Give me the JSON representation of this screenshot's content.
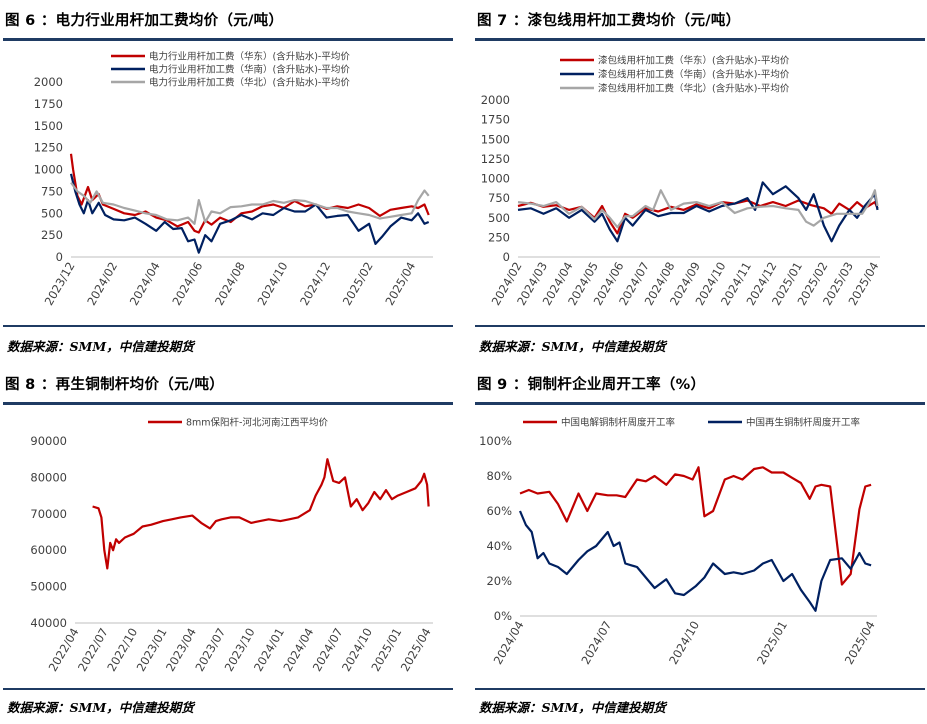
{
  "colors": {
    "red": "#c00000",
    "navy": "#002060",
    "grey": "#a6a6a6",
    "rule": "#1f3b63",
    "axis": "#404040"
  },
  "source_text": "数据来源：SMM，中信建投期货",
  "charts": [
    {
      "title": "图 6 ：电力行业用杆加工费均价（元/吨）",
      "chart_data": {
        "type": "line",
        "ylim": [
          0,
          2000
        ],
        "yticks": [
          "2000",
          "1750",
          "1500",
          "1250",
          "1000",
          "750",
          "500",
          "250",
          "0"
        ],
        "xlim": [
          0,
          17
        ],
        "xticks": [
          "2023/12",
          "2024/02",
          "2024/04",
          "2024/06",
          "2024/08",
          "2024/10",
          "2024/12",
          "2025/02",
          "2025/04"
        ],
        "xtick_pos": [
          0,
          2,
          4,
          6,
          8,
          10,
          12,
          14,
          16
        ],
        "legend": [
          "电力行业用杆加工费（华东）(含升贴水)-平均价",
          "电力行业用杆加工费（华南）(含升贴水)-平均价",
          "电力行业用杆加工费（华北）(含升贴水)-平均价"
        ],
        "series": [
          {
            "name": "电力行业用杆加工费（华东）(含升贴水)-平均价",
            "color": "#c00000",
            "x": [
              0,
              0.1,
              0.3,
              0.5,
              0.8,
              1.0,
              1.3,
              1.5,
              2.0,
              2.5,
              3.0,
              3.5,
              4.0,
              4.5,
              5.0,
              5.5,
              5.8,
              6.0,
              6.3,
              6.6,
              7.0,
              7.5,
              8.0,
              8.5,
              9.0,
              9.5,
              10.0,
              10.5,
              11.0,
              11.5,
              12.0,
              12.5,
              13.0,
              13.5,
              14.0,
              14.5,
              15.0,
              15.5,
              16.0,
              16.3,
              16.6,
              16.8
            ],
            "y": [
              1180,
              1000,
              700,
              600,
              800,
              650,
              720,
              600,
              550,
              500,
              480,
              520,
              450,
              420,
              350,
              400,
              300,
              280,
              420,
              370,
              450,
              400,
              500,
              520,
              580,
              600,
              560,
              640,
              580,
              600,
              550,
              580,
              560,
              600,
              560,
              470,
              540,
              560,
              580,
              560,
              600,
              480
            ]
          },
          {
            "name": "电力行业用杆加工费（华南）(含升贴水)-平均价",
            "color": "#002060",
            "x": [
              0,
              0.2,
              0.4,
              0.6,
              0.8,
              1.0,
              1.3,
              1.6,
              2.0,
              2.5,
              3.0,
              3.5,
              4.0,
              4.4,
              4.8,
              5.2,
              5.5,
              5.8,
              6.0,
              6.3,
              6.6,
              7.0,
              7.5,
              8.0,
              8.5,
              9.0,
              9.5,
              10.0,
              10.5,
              11.0,
              11.5,
              12.0,
              12.5,
              13.0,
              13.5,
              14.0,
              14.3,
              14.6,
              15.0,
              15.5,
              16.0,
              16.3,
              16.6,
              16.8
            ],
            "y": [
              950,
              750,
              600,
              500,
              650,
              500,
              620,
              480,
              430,
              420,
              450,
              380,
              300,
              400,
              320,
              330,
              180,
              200,
              50,
              250,
              180,
              380,
              420,
              480,
              430,
              500,
              480,
              560,
              520,
              520,
              600,
              450,
              470,
              480,
              300,
              380,
              150,
              230,
              350,
              450,
              420,
              500,
              380,
              400
            ]
          },
          {
            "name": "电力行业用杆加工费（华北）(含升贴水)-平均价",
            "color": "#a6a6a6",
            "x": [
              0,
              0.3,
              0.6,
              0.9,
              1.2,
              1.5,
              2.0,
              2.5,
              3.0,
              3.5,
              4.0,
              4.5,
              5.0,
              5.5,
              5.8,
              6.0,
              6.3,
              6.6,
              7.0,
              7.5,
              8.0,
              8.5,
              9.0,
              9.5,
              10.0,
              10.5,
              11.0,
              11.5,
              12.0,
              12.5,
              13.0,
              13.5,
              14.0,
              14.5,
              15.0,
              15.5,
              16.0,
              16.3,
              16.6,
              16.8
            ],
            "y": [
              850,
              750,
              700,
              620,
              750,
              620,
              600,
              560,
              530,
              500,
              480,
              430,
              420,
              450,
              380,
              650,
              400,
              520,
              500,
              570,
              580,
              600,
              600,
              640,
              620,
              650,
              640,
              600,
              560,
              560,
              520,
              500,
              480,
              440,
              460,
              480,
              500,
              650,
              760,
              700
            ]
          }
        ]
      }
    },
    {
      "title": "图 7 ：漆包线用杆加工费均价（元/吨）",
      "chart_data": {
        "type": "line",
        "ylim": [
          0,
          2000
        ],
        "yticks": [
          "2000",
          "1750",
          "1500",
          "1250",
          "1000",
          "750",
          "500",
          "250",
          "0"
        ],
        "xlim": [
          0,
          14.2
        ],
        "xticks": [
          "2024/02",
          "2024/03",
          "2024/04",
          "2024/05",
          "2024/06",
          "2024/07",
          "2024/08",
          "2024/09",
          "2024/10",
          "2024/11",
          "2024/12",
          "2025/01",
          "2025/02",
          "2025/03",
          "2025/04"
        ],
        "xtick_pos": [
          0,
          1,
          2,
          3,
          4,
          5,
          6,
          7,
          8,
          9,
          10,
          11,
          12,
          13,
          14
        ],
        "legend": [
          "漆包线用杆加工费（华东）(含升贴水)-平均价",
          "漆包线用杆加工费（华南）(含升贴水)-平均价",
          "漆包线用杆加工费（华北）(含升贴水)-平均价"
        ],
        "series": [
          {
            "name": "漆包线用杆加工费（华东）(含升贴水)-平均价",
            "color": "#c00000",
            "x": [
              0,
              0.5,
              1.0,
              1.5,
              2.0,
              2.5,
              3.0,
              3.3,
              3.6,
              3.9,
              4.2,
              4.5,
              5.0,
              5.5,
              6.0,
              6.5,
              7.0,
              7.5,
              8.0,
              8.5,
              9.0,
              9.5,
              10.0,
              10.5,
              11.0,
              11.5,
              12.0,
              12.3,
              12.6,
              13.0,
              13.3,
              13.6,
              14.0,
              14.1
            ],
            "y": [
              650,
              690,
              640,
              660,
              600,
              640,
              500,
              650,
              450,
              300,
              550,
              500,
              620,
              580,
              640,
              600,
              670,
              620,
              700,
              680,
              720,
              650,
              700,
              650,
              720,
              660,
              620,
              550,
              680,
              600,
              700,
              620,
              700,
              620
            ]
          },
          {
            "name": "漆包线用杆加工费（华南）(含升贴水)-平均价",
            "color": "#002060",
            "x": [
              0,
              0.5,
              1.0,
              1.5,
              2.0,
              2.5,
              3.0,
              3.3,
              3.6,
              3.9,
              4.2,
              4.5,
              5.0,
              5.5,
              6.0,
              6.5,
              7.0,
              7.5,
              8.0,
              8.5,
              9.0,
              9.3,
              9.6,
              10.0,
              10.5,
              11.0,
              11.3,
              11.6,
              12.0,
              12.3,
              12.6,
              13.0,
              13.3,
              13.6,
              14.0,
              14.1
            ],
            "y": [
              600,
              620,
              550,
              620,
              500,
              600,
              450,
              550,
              350,
              200,
              500,
              400,
              600,
              520,
              560,
              560,
              650,
              580,
              650,
              680,
              750,
              600,
              950,
              800,
              900,
              750,
              600,
              800,
              400,
              200,
              400,
              600,
              500,
              650,
              800,
              600
            ]
          },
          {
            "name": "漆包线用杆加工费（华北）(含升贴水)-平均价",
            "color": "#a6a6a6",
            "x": [
              0,
              0.5,
              1.0,
              1.5,
              2.0,
              2.5,
              3.0,
              3.3,
              3.6,
              3.9,
              4.2,
              4.5,
              5.0,
              5.3,
              5.6,
              6.0,
              6.5,
              7.0,
              7.5,
              8.0,
              8.5,
              9.0,
              9.5,
              10.0,
              10.5,
              11.0,
              11.3,
              11.6,
              12.0,
              12.5,
              13.0,
              13.5,
              13.8,
              14.0,
              14.1
            ],
            "y": [
              700,
              680,
              650,
              700,
              550,
              640,
              480,
              600,
              500,
              380,
              520,
              520,
              650,
              600,
              850,
              600,
              680,
              700,
              650,
              700,
              560,
              620,
              640,
              650,
              620,
              600,
              450,
              400,
              500,
              550,
              550,
              550,
              700,
              850,
              650
            ]
          }
        ]
      }
    },
    {
      "title": "图 8 ：再生铜制杆均价（元/吨）",
      "chart_data": {
        "type": "line",
        "ylim": [
          40000,
          90000
        ],
        "yticks": [
          "90000",
          "80000",
          "70000",
          "60000",
          "50000",
          "40000"
        ],
        "xlim": [
          0,
          12.2
        ],
        "xticks": [
          "2022/04",
          "2022/07",
          "2022/10",
          "2023/01",
          "2023/04",
          "2023/07",
          "2023/10",
          "2024/01",
          "2024/04",
          "2024/07",
          "2024/10",
          "2025/01",
          "2025/04"
        ],
        "xtick_pos": [
          0,
          1,
          2,
          3,
          4,
          5,
          6,
          7,
          8,
          9,
          10,
          11,
          12
        ],
        "legend": [
          "8mm保阳杆-河北河南江西平均价"
        ],
        "series": [
          {
            "name": "8mm保阳杆-河北河南江西平均价",
            "color": "#c00000",
            "x": [
              0.6,
              0.8,
              0.9,
              1.0,
              1.1,
              1.2,
              1.3,
              1.4,
              1.5,
              1.7,
              2.0,
              2.3,
              2.6,
              3.0,
              3.3,
              3.6,
              4.0,
              4.3,
              4.6,
              4.8,
              5.0,
              5.3,
              5.6,
              6.0,
              6.3,
              6.6,
              7.0,
              7.3,
              7.6,
              7.8,
              8.0,
              8.2,
              8.4,
              8.5,
              8.6,
              8.8,
              9.0,
              9.2,
              9.4,
              9.6,
              9.8,
              10.0,
              10.2,
              10.4,
              10.6,
              10.8,
              11.0,
              11.3,
              11.6,
              11.8,
              11.9,
              12.0,
              12.05
            ],
            "y": [
              72000,
              71500,
              69000,
              60000,
              55000,
              62000,
              60000,
              63000,
              62000,
              63500,
              64500,
              66500,
              67000,
              68000,
              68500,
              69000,
              69500,
              67500,
              66000,
              68000,
              68500,
              69000,
              69000,
              67500,
              68000,
              68500,
              68000,
              68500,
              69000,
              70000,
              71000,
              75000,
              78000,
              80000,
              85000,
              79000,
              78500,
              80000,
              72000,
              74000,
              71000,
              73000,
              76000,
              74000,
              76500,
              74000,
              75000,
              76000,
              77000,
              79000,
              81000,
              78000,
              72000
            ]
          }
        ]
      }
    },
    {
      "title": "图 9 ：铜制杆企业周开工率（%）",
      "chart_data": {
        "type": "line",
        "ylim": [
          0,
          100
        ],
        "yticks": [
          "100%",
          "80%",
          "60%",
          "40%",
          "20%",
          "0%"
        ],
        "xlim": [
          0,
          12.2
        ],
        "xticks": [
          "2024/04",
          "2024/07",
          "2024/10",
          "2025/01",
          "2025/04"
        ],
        "xtick_pos": [
          0,
          3,
          6,
          9,
          12
        ],
        "legend": [
          "中国电解铜制杆周度开工率",
          "中国再生铜制杆周度开工率"
        ],
        "series": [
          {
            "name": "中国电解铜制杆周度开工率",
            "color": "#c00000",
            "x": [
              0,
              0.3,
              0.6,
              1.0,
              1.3,
              1.6,
              2.0,
              2.3,
              2.6,
              3.0,
              3.3,
              3.6,
              4.0,
              4.3,
              4.6,
              5.0,
              5.3,
              5.6,
              5.9,
              6.1,
              6.3,
              6.6,
              7.0,
              7.3,
              7.6,
              8.0,
              8.3,
              8.6,
              9.0,
              9.3,
              9.6,
              9.9,
              10.1,
              10.3,
              10.6,
              11.0,
              11.3,
              11.6,
              11.8,
              12.0
            ],
            "y": [
              70,
              72,
              70,
              71,
              64,
              54,
              70,
              60,
              70,
              69,
              69,
              68,
              78,
              77,
              80,
              75,
              81,
              80,
              78,
              85,
              57,
              60,
              78,
              80,
              78,
              84,
              85,
              82,
              82,
              79,
              76,
              67,
              74,
              75,
              74,
              18,
              24,
              61,
              74,
              75
            ]
          },
          {
            "name": "中国再生铜制杆周度开工率",
            "color": "#002060",
            "x": [
              0,
              0.2,
              0.4,
              0.6,
              0.8,
              1.0,
              1.3,
              1.6,
              2.0,
              2.3,
              2.6,
              3.0,
              3.2,
              3.4,
              3.6,
              3.8,
              4.0,
              4.3,
              4.6,
              5.0,
              5.3,
              5.6,
              6.0,
              6.3,
              6.6,
              7.0,
              7.3,
              7.6,
              8.0,
              8.3,
              8.6,
              9.0,
              9.3,
              9.6,
              9.9,
              10.1,
              10.3,
              10.6,
              11.0,
              11.3,
              11.6,
              11.8,
              12.0
            ],
            "y": [
              60,
              52,
              48,
              33,
              36,
              30,
              28,
              24,
              32,
              37,
              40,
              48,
              40,
              42,
              30,
              29,
              28,
              22,
              16,
              21,
              13,
              12,
              17,
              22,
              30,
              24,
              25,
              24,
              26,
              30,
              32,
              20,
              24,
              15,
              8,
              3,
              20,
              32,
              33,
              27,
              36,
              30,
              29
            ]
          }
        ]
      }
    }
  ]
}
